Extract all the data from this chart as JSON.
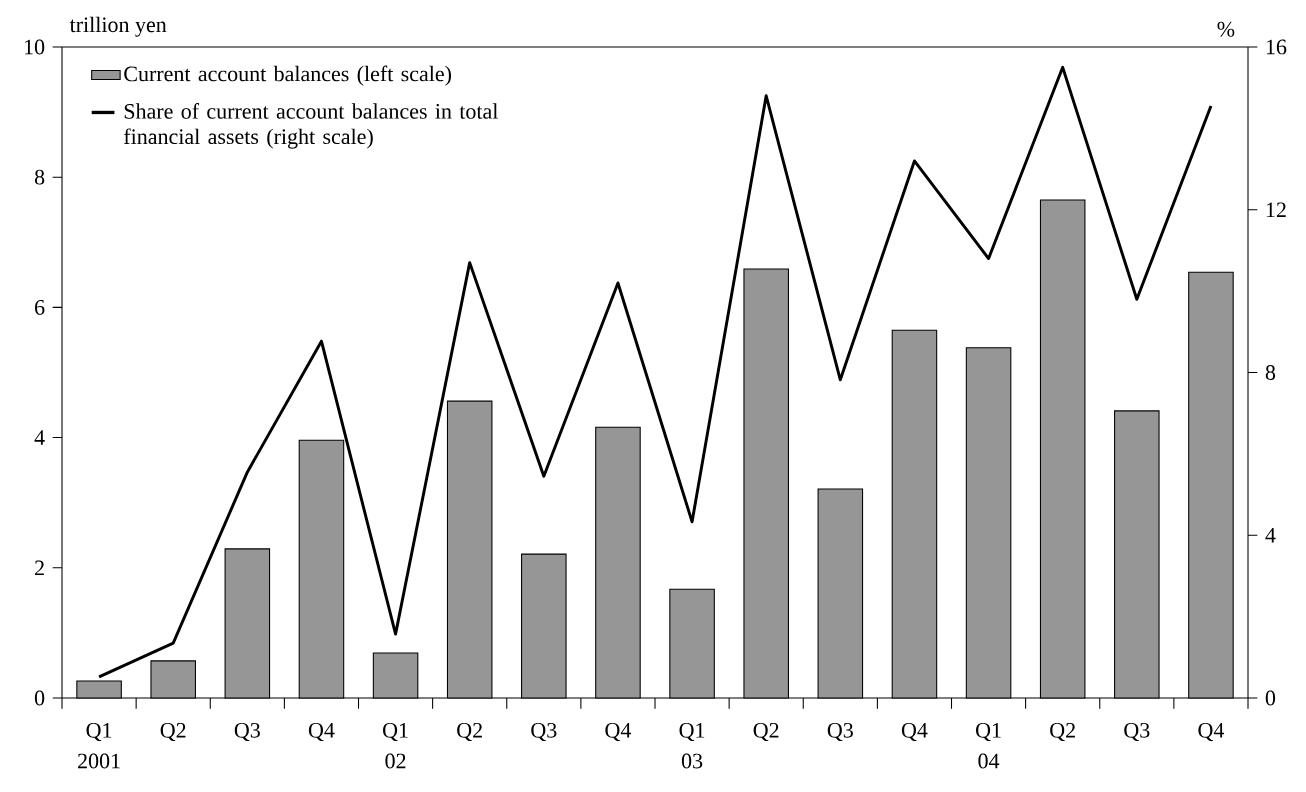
{
  "chart_data": {
    "type": "bar",
    "ylabel": "trillion yen",
    "y2label": "%",
    "categories": [
      "Q1",
      "Q2",
      "Q3",
      "Q4",
      "Q1",
      "Q2",
      "Q3",
      "Q4",
      "Q1",
      "Q2",
      "Q3",
      "Q4",
      "Q1",
      "Q2",
      "Q3",
      "Q4"
    ],
    "series": [
      {
        "name": "Current account balances (left scale)",
        "color": "#969696",
        "values": [
          0.26,
          0.57,
          2.29,
          3.96,
          0.69,
          4.56,
          2.21,
          4.16,
          1.67,
          6.59,
          3.21,
          5.65,
          5.38,
          7.65,
          4.41,
          6.54
        ]
      },
      {
        "name": "Share of current account balances in total financial assets (right scale)",
        "type": "line",
        "axis": "y2",
        "color": "#000000",
        "values": [
          0.52,
          1.35,
          5.55,
          8.77,
          1.57,
          10.7,
          5.45,
          10.2,
          4.33,
          14.8,
          7.82,
          13.2,
          10.8,
          15.5,
          9.8,
          14.55
        ]
      }
    ],
    "ylim": [
      0,
      10
    ],
    "yticks": [
      0,
      2,
      4,
      6,
      8,
      10
    ],
    "y2lim": [
      0,
      16
    ],
    "y2ticks": [
      0,
      4,
      8,
      12,
      16
    ],
    "annotations": [
      "2001",
      "02",
      "03",
      "04"
    ],
    "grid": false,
    "legend": "top left",
    "marker": "none",
    "line_style": "solid"
  }
}
